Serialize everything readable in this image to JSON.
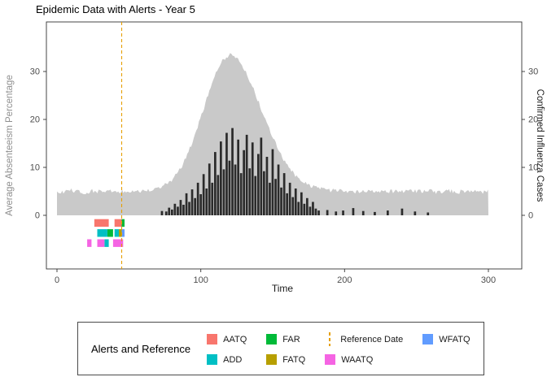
{
  "background": "#FFFFFF",
  "panel": {
    "bg": "#FFFFFF",
    "border": "#333333"
  },
  "axis_style": {
    "tick_color": "#333333",
    "tick_label_color": "#4D4D4D"
  },
  "legend": {
    "title": "Alerts and Reference",
    "items": [
      {
        "label": "AATQ",
        "swatch": "square",
        "color": "#F8766D"
      },
      {
        "label": "ADD",
        "swatch": "square",
        "color": "#00BFC4"
      },
      {
        "label": "FAR",
        "swatch": "square",
        "color": "#00BA38"
      },
      {
        "label": "FATQ",
        "swatch": "square",
        "color": "#B79F00"
      },
      {
        "label": "Reference Date",
        "swatch": "dashed-line",
        "color": "#E69F00"
      },
      {
        "label": "WAATQ",
        "swatch": "square",
        "color": "#F564E3"
      },
      {
        "label": "WFATQ",
        "swatch": "square",
        "color": "#619CFF"
      }
    ]
  },
  "chart_data": {
    "type": "area",
    "title": "Epidemic Data with Alerts - Year 5",
    "xlabel": "Time",
    "ylabel": "Average Absenteeism Percentage",
    "ylabel_right": "Confirmed Influenza Cases",
    "xlim": [
      -7,
      323
    ],
    "ylim": [
      -11,
      40
    ],
    "x_ticks": [
      0,
      100,
      200,
      300
    ],
    "y_ticks": [
      0,
      10,
      20,
      30
    ],
    "grid": false,
    "legend_position": "bottom",
    "reference_date_x": 45,
    "reference_color": "#E69F00",
    "series": [
      {
        "name": "Average Absenteeism Percentage",
        "type": "area",
        "color": "#C9C9C9",
        "x": [
          0,
          5,
          10,
          15,
          20,
          25,
          30,
          35,
          40,
          45,
          50,
          55,
          60,
          65,
          70,
          75,
          80,
          85,
          90,
          95,
          100,
          105,
          110,
          115,
          120,
          125,
          130,
          135,
          140,
          145,
          150,
          155,
          160,
          165,
          170,
          175,
          180,
          185,
          190,
          195,
          200,
          205,
          210,
          215,
          220,
          225,
          230,
          235,
          240,
          245,
          250,
          255,
          260,
          265,
          270,
          275,
          280,
          285,
          290,
          295,
          300
        ],
        "y": [
          5.1,
          4.8,
          5.2,
          5.0,
          4.7,
          5.1,
          4.9,
          5.2,
          4.8,
          5.0,
          5.1,
          4.8,
          5.2,
          5.4,
          5.7,
          6.3,
          7.4,
          9.3,
          12.1,
          15.9,
          20.3,
          25.0,
          29.3,
          32.3,
          33.6,
          32.8,
          30.6,
          27.5,
          23.8,
          19.9,
          16.2,
          13.1,
          10.5,
          8.6,
          7.2,
          6.3,
          5.8,
          5.5,
          5.2,
          5.1,
          5.0,
          4.8,
          5.1,
          4.9,
          5.2,
          5.0,
          4.8,
          5.1,
          4.9,
          5.2,
          5.0,
          4.9,
          5.1,
          4.8,
          5.2,
          5.0,
          4.9,
          5.1,
          5.0,
          4.8,
          5.0
        ]
      },
      {
        "name": "Confirmed Influenza Cases",
        "type": "bar",
        "color": "#2B2B2B",
        "x": [
          73,
          76,
          78,
          80,
          82,
          84,
          86,
          88,
          90,
          92,
          94,
          96,
          98,
          100,
          102,
          104,
          106,
          108,
          110,
          112,
          114,
          116,
          118,
          120,
          122,
          124,
          126,
          128,
          130,
          132,
          134,
          136,
          138,
          140,
          142,
          144,
          146,
          148,
          150,
          152,
          154,
          156,
          158,
          160,
          162,
          164,
          166,
          168,
          170,
          172,
          174,
          176,
          178,
          180,
          182,
          188,
          194,
          199,
          206,
          213,
          221,
          230,
          240,
          249,
          258
        ],
        "y": [
          0.9,
          0.8,
          1.6,
          1.2,
          2.4,
          1.8,
          3.2,
          2.2,
          4.6,
          2.8,
          5.4,
          3.6,
          6.8,
          4.4,
          8.6,
          5.6,
          10.8,
          6.8,
          13.2,
          8.4,
          15.4,
          9.6,
          17.2,
          11.4,
          18.2,
          10.6,
          15.8,
          8.8,
          13.6,
          16.8,
          9.8,
          15.2,
          8.2,
          12.8,
          16.2,
          9.2,
          12.2,
          6.8,
          13.8,
          7.6,
          10.6,
          5.8,
          8.8,
          4.6,
          6.8,
          3.8,
          5.6,
          2.8,
          4.8,
          2.4,
          3.6,
          1.8,
          2.8,
          1.4,
          1.0,
          1.1,
          0.8,
          1.0,
          1.5,
          0.9,
          0.7,
          1.0,
          1.4,
          0.8,
          0.6
        ]
      }
    ],
    "alert_markers": [
      {
        "name": "AATQ",
        "color": "#F8766D",
        "segments": [
          [
            26,
            36,
            -1.6
          ],
          [
            40,
            45,
            -1.6
          ]
        ]
      },
      {
        "name": "FAR",
        "color": "#00BA38",
        "segments": [
          [
            35,
            39,
            -3.7
          ],
          [
            45,
            47,
            -1.6
          ]
        ]
      },
      {
        "name": "ADD",
        "color": "#00BFC4",
        "segments": [
          [
            28,
            35,
            -3.7
          ],
          [
            40,
            43,
            -3.7
          ],
          [
            33,
            36,
            -5.8
          ]
        ]
      },
      {
        "name": "FATQ",
        "color": "#B79F00",
        "segments": [
          [
            43,
            45,
            -3.7
          ]
        ]
      },
      {
        "name": "WFATQ",
        "color": "#619CFF",
        "segments": [
          [
            45,
            47,
            -3.7
          ]
        ]
      },
      {
        "name": "WAATQ",
        "color": "#F564E3",
        "segments": [
          [
            21,
            24,
            -5.8
          ],
          [
            28,
            33,
            -5.8
          ],
          [
            39,
            46,
            -5.8
          ]
        ]
      }
    ]
  }
}
